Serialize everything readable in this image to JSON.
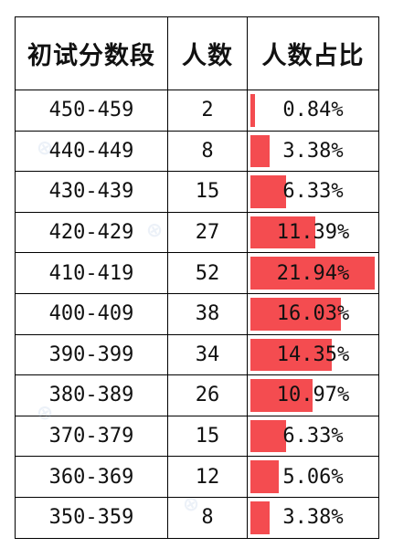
{
  "header": {
    "col1": "初试分数段",
    "col2": "人数",
    "col3": "人数占比"
  },
  "rows": [
    {
      "range": "450-459",
      "count": "2",
      "pct_label": "0.84%",
      "pct": 0.84
    },
    {
      "range": "440-449",
      "count": "8",
      "pct_label": "3.38%",
      "pct": 3.38
    },
    {
      "range": "430-439",
      "count": "15",
      "pct_label": "6.33%",
      "pct": 6.33
    },
    {
      "range": "420-429",
      "count": "27",
      "pct_label": "11.39%",
      "pct": 11.39
    },
    {
      "range": "410-419",
      "count": "52",
      "pct_label": "21.94%",
      "pct": 21.94
    },
    {
      "range": "400-409",
      "count": "38",
      "pct_label": "16.03%",
      "pct": 16.03
    },
    {
      "range": "390-399",
      "count": "34",
      "pct_label": "14.35%",
      "pct": 14.35
    },
    {
      "range": "380-389",
      "count": "26",
      "pct_label": "10.97%",
      "pct": 10.97
    },
    {
      "range": "370-379",
      "count": "15",
      "pct_label": "6.33%",
      "pct": 6.33
    },
    {
      "range": "360-369",
      "count": "12",
      "pct_label": "5.06%",
      "pct": 5.06
    },
    {
      "range": "350-359",
      "count": "8",
      "pct_label": "3.38%",
      "pct": 3.38
    }
  ],
  "bar_color": "#f44c50",
  "bar_max_pct": 21.94
}
